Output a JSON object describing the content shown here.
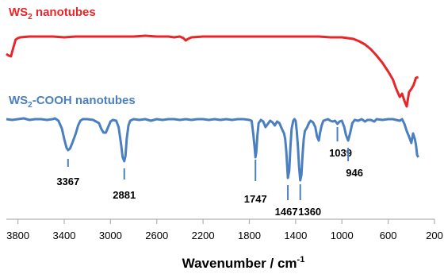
{
  "chart_data": {
    "type": "line",
    "xlabel": "Wavenumber / cm",
    "xlabel_superscript": "-1",
    "xlim": [
      3900,
      200
    ],
    "x_reversed": true,
    "xticks": [
      3800,
      3400,
      3000,
      2600,
      2200,
      1800,
      1400,
      1000,
      600,
      200
    ],
    "grid": false,
    "y_axis_visible": false,
    "series": [
      {
        "name": "WS",
        "name_subscript": "2",
        "name_suffix": " nanotubes",
        "color": "#e8262a",
        "points": [
          [
            3900,
            68
          ],
          [
            3880,
            70
          ],
          [
            3860,
            71
          ],
          [
            3840,
            60
          ],
          [
            3820,
            50
          ],
          [
            3800,
            48
          ],
          [
            3780,
            47
          ],
          [
            3700,
            46
          ],
          [
            3600,
            46
          ],
          [
            3500,
            46
          ],
          [
            3400,
            47
          ],
          [
            3300,
            46
          ],
          [
            3200,
            46
          ],
          [
            3100,
            46
          ],
          [
            3000,
            46
          ],
          [
            2900,
            46
          ],
          [
            2800,
            46
          ],
          [
            2700,
            45
          ],
          [
            2600,
            46
          ],
          [
            2500,
            46
          ],
          [
            2450,
            47
          ],
          [
            2400,
            46
          ],
          [
            2370,
            48
          ],
          [
            2350,
            51
          ],
          [
            2330,
            49
          ],
          [
            2300,
            47
          ],
          [
            2200,
            46
          ],
          [
            2100,
            46
          ],
          [
            2000,
            46
          ],
          [
            1900,
            46
          ],
          [
            1800,
            46
          ],
          [
            1700,
            46
          ],
          [
            1600,
            46
          ],
          [
            1500,
            46
          ],
          [
            1400,
            46
          ],
          [
            1300,
            46
          ],
          [
            1200,
            46
          ],
          [
            1100,
            47
          ],
          [
            1000,
            47
          ],
          [
            900,
            49
          ],
          [
            850,
            52
          ],
          [
            800,
            56
          ],
          [
            750,
            62
          ],
          [
            700,
            70
          ],
          [
            650,
            79
          ],
          [
            600,
            90
          ],
          [
            560,
            100
          ],
          [
            530,
            112
          ],
          [
            500,
            122
          ],
          [
            480,
            118
          ],
          [
            460,
            127
          ],
          [
            440,
            134
          ],
          [
            420,
            116
          ],
          [
            400,
            112
          ],
          [
            380,
            107
          ],
          [
            360,
            98
          ],
          [
            340,
            97
          ]
        ]
      },
      {
        "name": "WS",
        "name_subscript": "2",
        "name_suffix": "-COOH nanotubes",
        "color": "#4a7fc1",
        "points": [
          [
            3900,
            150
          ],
          [
            3850,
            151
          ],
          [
            3800,
            150
          ],
          [
            3750,
            149
          ],
          [
            3700,
            151
          ],
          [
            3650,
            150
          ],
          [
            3600,
            150
          ],
          [
            3550,
            151
          ],
          [
            3500,
            150
          ],
          [
            3480,
            149
          ],
          [
            3450,
            152
          ],
          [
            3420,
            162
          ],
          [
            3400,
            175
          ],
          [
            3380,
            186
          ],
          [
            3367,
            189
          ],
          [
            3350,
            187
          ],
          [
            3330,
            180
          ],
          [
            3300,
            168
          ],
          [
            3280,
            158
          ],
          [
            3260,
            152
          ],
          [
            3240,
            150
          ],
          [
            3200,
            150
          ],
          [
            3150,
            151
          ],
          [
            3100,
            155
          ],
          [
            3080,
            162
          ],
          [
            3060,
            167
          ],
          [
            3040,
            167
          ],
          [
            3020,
            160
          ],
          [
            3000,
            153
          ],
          [
            2980,
            151
          ],
          [
            2950,
            152
          ],
          [
            2930,
            160
          ],
          [
            2910,
            180
          ],
          [
            2895,
            198
          ],
          [
            2881,
            203
          ],
          [
            2870,
            196
          ],
          [
            2860,
            175
          ],
          [
            2845,
            158
          ],
          [
            2830,
            152
          ],
          [
            2800,
            150
          ],
          [
            2750,
            151
          ],
          [
            2700,
            150
          ],
          [
            2650,
            152
          ],
          [
            2600,
            150
          ],
          [
            2550,
            151
          ],
          [
            2500,
            150
          ],
          [
            2450,
            150
          ],
          [
            2400,
            151
          ],
          [
            2350,
            150
          ],
          [
            2300,
            151
          ],
          [
            2250,
            150
          ],
          [
            2200,
            150
          ],
          [
            2150,
            151
          ],
          [
            2100,
            150
          ],
          [
            2050,
            151
          ],
          [
            2000,
            150
          ],
          [
            1950,
            151
          ],
          [
            1900,
            150
          ],
          [
            1850,
            150
          ],
          [
            1800,
            151
          ],
          [
            1780,
            152
          ],
          [
            1765,
            170
          ],
          [
            1755,
            185
          ],
          [
            1747,
            198
          ],
          [
            1740,
            192
          ],
          [
            1730,
            170
          ],
          [
            1720,
            155
          ],
          [
            1700,
            151
          ],
          [
            1680,
            153
          ],
          [
            1660,
            160
          ],
          [
            1640,
            156
          ],
          [
            1620,
            152
          ],
          [
            1600,
            154
          ],
          [
            1580,
            158
          ],
          [
            1560,
            153
          ],
          [
            1540,
            155
          ],
          [
            1520,
            162
          ],
          [
            1500,
            168
          ],
          [
            1490,
            175
          ],
          [
            1480,
            192
          ],
          [
            1467,
            224
          ],
          [
            1455,
            215
          ],
          [
            1445,
            185
          ],
          [
            1435,
            162
          ],
          [
            1420,
            152
          ],
          [
            1410,
            150
          ],
          [
            1400,
            152
          ],
          [
            1390,
            165
          ],
          [
            1380,
            185
          ],
          [
            1370,
            210
          ],
          [
            1360,
            227
          ],
          [
            1350,
            220
          ],
          [
            1340,
            195
          ],
          [
            1330,
            175
          ],
          [
            1320,
            165
          ],
          [
            1300,
            160
          ],
          [
            1285,
            155
          ],
          [
            1270,
            152
          ],
          [
            1250,
            154
          ],
          [
            1230,
            160
          ],
          [
            1215,
            172
          ],
          [
            1200,
            177
          ],
          [
            1190,
            168
          ],
          [
            1175,
            158
          ],
          [
            1160,
            152
          ],
          [
            1140,
            151
          ],
          [
            1120,
            150
          ],
          [
            1100,
            152
          ],
          [
            1080,
            153
          ],
          [
            1060,
            152
          ],
          [
            1039,
            156
          ],
          [
            1020,
            153
          ],
          [
            1000,
            152
          ],
          [
            980,
            160
          ],
          [
            965,
            170
          ],
          [
            946,
            177
          ],
          [
            930,
            168
          ],
          [
            910,
            155
          ],
          [
            890,
            151
          ],
          [
            860,
            152
          ],
          [
            830,
            150
          ],
          [
            800,
            153
          ],
          [
            780,
            151
          ],
          [
            750,
            151
          ],
          [
            720,
            153
          ],
          [
            700,
            150
          ],
          [
            650,
            151
          ],
          [
            600,
            150
          ],
          [
            560,
            150
          ],
          [
            530,
            151
          ],
          [
            500,
            152
          ],
          [
            480,
            150
          ],
          [
            460,
            156
          ],
          [
            440,
            165
          ],
          [
            420,
            172
          ],
          [
            400,
            180
          ],
          [
            385,
            168
          ],
          [
            370,
            175
          ],
          [
            360,
            182
          ],
          [
            350,
            195
          ],
          [
            340,
            198
          ]
        ]
      }
    ],
    "annotations": [
      {
        "label": "3367",
        "x": 3367
      },
      {
        "label": "2881",
        "x": 2881
      },
      {
        "label": "1747",
        "x": 1747
      },
      {
        "label": "1467",
        "x": 1467
      },
      {
        "label": "1360",
        "x": 1360
      },
      {
        "label": "1039",
        "x": 1039
      },
      {
        "label": "946",
        "x": 946
      }
    ]
  }
}
